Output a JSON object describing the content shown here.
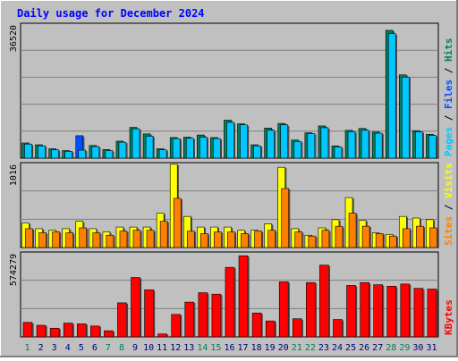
{
  "chart_data": {
    "type": "bar",
    "title": "Daily usage for December 2024",
    "colors": {
      "background": "#c0c0c0",
      "title": "#0000ff",
      "hits": "#00805c",
      "files": "#0050ff",
      "pages": "#00c8ff",
      "visits": "#ffff00",
      "sites": "#ff8000",
      "kbytes": "#ff0000",
      "day_weekday": "#000080",
      "day_weekend": "#00805c"
    },
    "categories": [
      "1",
      "2",
      "3",
      "4",
      "5",
      "6",
      "7",
      "8",
      "9",
      "10",
      "11",
      "12",
      "13",
      "14",
      "15",
      "16",
      "17",
      "18",
      "19",
      "20",
      "21",
      "22",
      "23",
      "24",
      "25",
      "26",
      "27",
      "28",
      "29",
      "30",
      "31"
    ],
    "weekend_days": [
      "1",
      "7",
      "8",
      "14",
      "15",
      "21",
      "22",
      "28",
      "29"
    ],
    "panels": [
      {
        "id": "hits-files-pages",
        "ylabel_parts": [
          "Pages",
          "Files",
          "Hits"
        ],
        "ymax_label": "36520",
        "ylim": [
          0,
          36520
        ],
        "series": [
          {
            "name": "Hits",
            "values": [
              4200,
              3700,
              2600,
              2100,
              6200,
              3500,
              2400,
              4700,
              8500,
              6700,
              2600,
              5700,
              5800,
              6400,
              5700,
              10500,
              9500,
              3700,
              8300,
              9600,
              5000,
              7000,
              8900,
              3400,
              7700,
              8200,
              7200,
              35300,
              23000,
              7600,
              6600
            ]
          },
          {
            "name": "Files",
            "values": [
              4200,
              3700,
              2600,
              2100,
              6200,
              3500,
              2400,
              4700,
              8500,
              6700,
              2600,
              5700,
              5800,
              6400,
              5700,
              10500,
              9500,
              3700,
              8300,
              9600,
              5000,
              7000,
              8900,
              3400,
              7700,
              8200,
              7200,
              35300,
              23000,
              7600,
              6600
            ]
          },
          {
            "name": "Pages",
            "values": [
              3900,
              3400,
              2300,
              1900,
              2200,
              3200,
              2100,
              4400,
              8100,
              6100,
              2300,
              5400,
              5500,
              5800,
              5400,
              9900,
              9200,
              3400,
              7700,
              9200,
              4600,
              6800,
              8400,
              3100,
              7300,
              7700,
              6900,
              34400,
              22400,
              7300,
              6300
            ]
          }
        ]
      },
      {
        "id": "visits-sites",
        "ylabel_parts": [
          "Sites",
          "Visits"
        ],
        "ymax_label": "1016",
        "ylim": [
          0,
          1016
        ],
        "series": [
          {
            "name": "Visits",
            "values": [
              300,
              230,
              210,
              230,
              320,
              230,
              190,
              250,
              250,
              250,
              420,
              1016,
              380,
              250,
              250,
              250,
              210,
              210,
              290,
              980,
              230,
              150,
              240,
              340,
              610,
              330,
              180,
              160,
              380,
              360,
              340
            ]
          },
          {
            "name": "Sites",
            "values": [
              230,
              180,
              190,
              180,
              240,
              180,
              150,
              200,
              210,
              210,
              320,
              600,
              200,
              170,
              190,
              190,
              170,
              200,
              210,
              720,
              190,
              140,
              210,
              260,
              420,
              260,
              170,
              140,
              230,
              260,
              240
            ]
          }
        ]
      },
      {
        "id": "kbytes",
        "ylabel_parts": [
          "KBytes"
        ],
        "ymax_label": "574279",
        "ylim": [
          0,
          574279
        ],
        "series": [
          {
            "name": "KBytes",
            "values": [
              100000,
              80000,
              60000,
              95000,
              90000,
              75000,
              42000,
              235000,
              410000,
              325000,
              20000,
              155000,
              240000,
              305000,
              295000,
              480000,
              560000,
              165000,
              110000,
              380000,
              125000,
              375000,
              495000,
              120000,
              355000,
              375000,
              360000,
              350000,
              365000,
              335000,
              330000
            ]
          }
        ]
      }
    ]
  }
}
